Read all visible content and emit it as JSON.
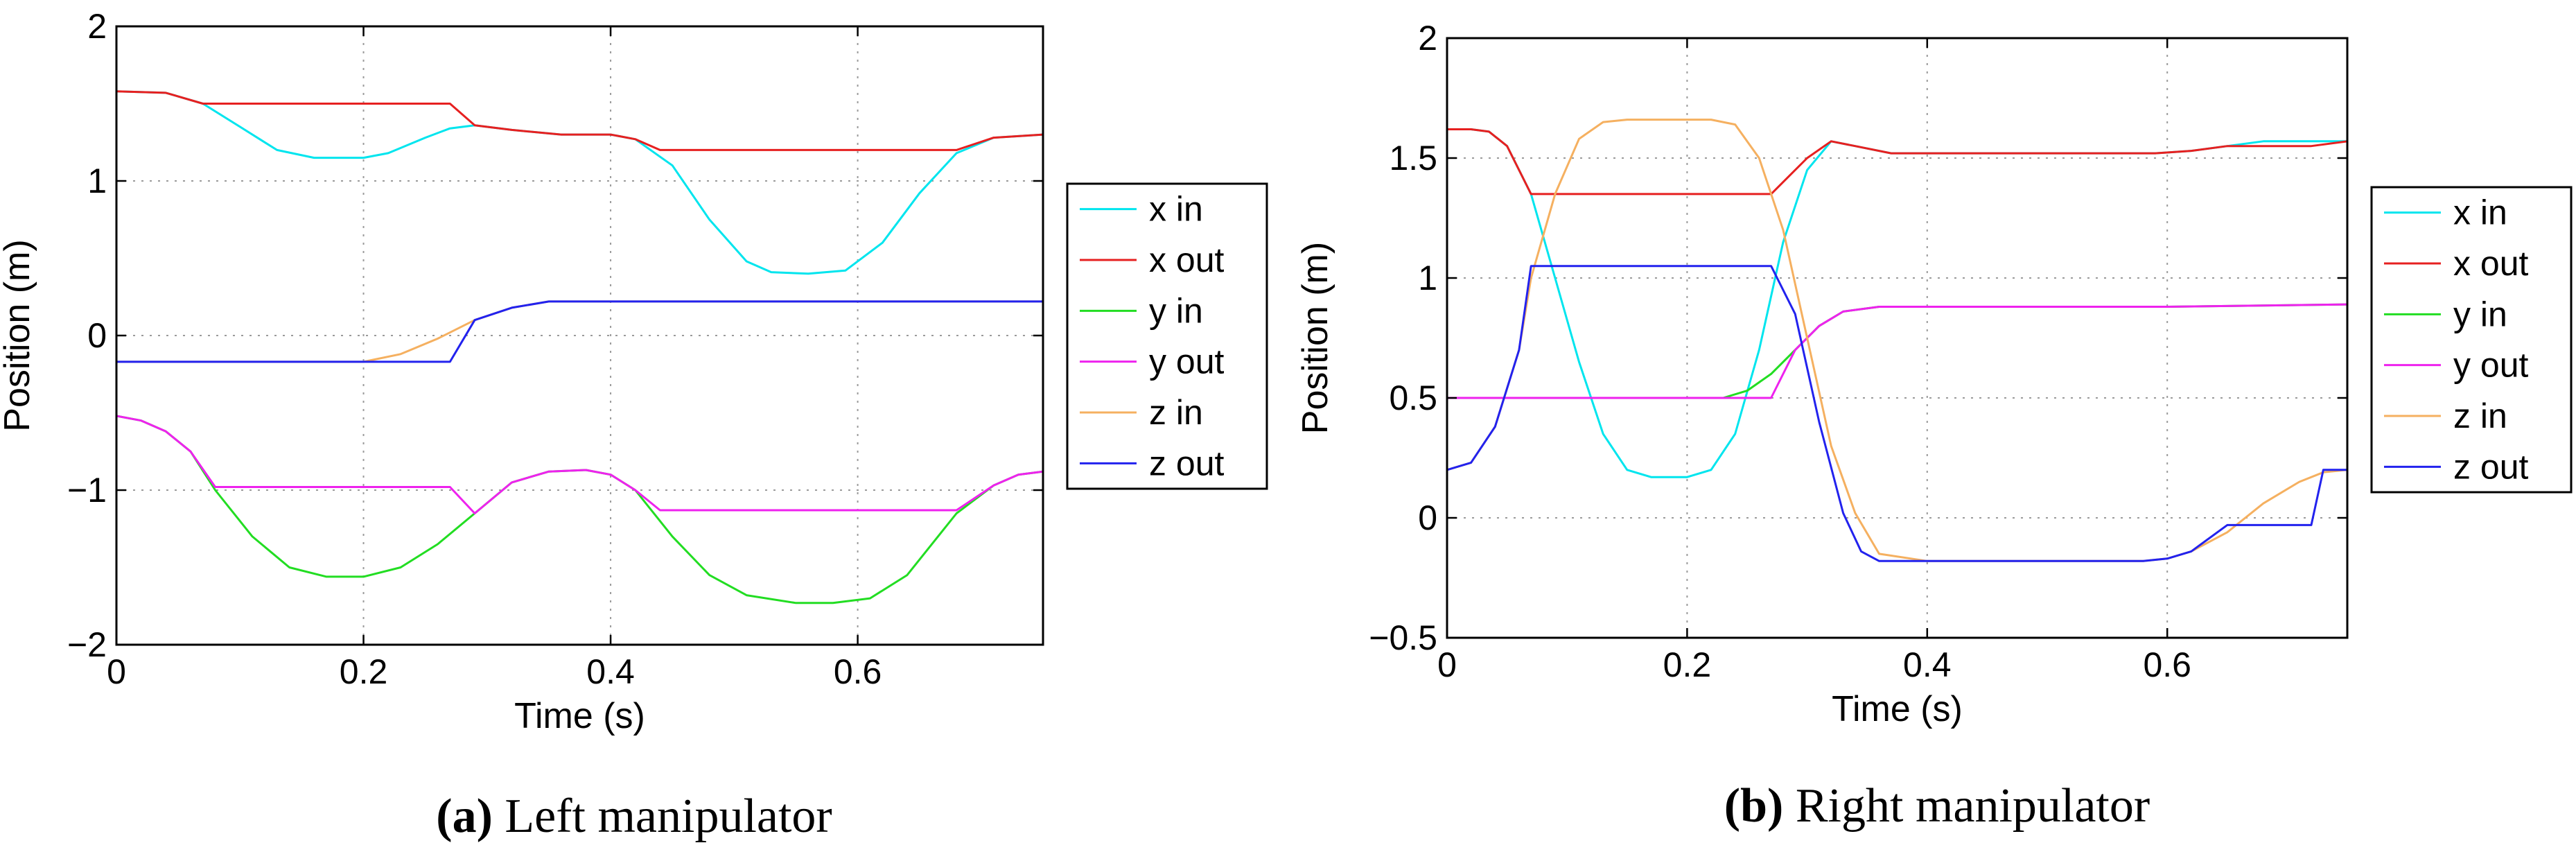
{
  "chart_data": [
    {
      "type": "line",
      "xlabel": "Time (s)",
      "ylabel": "Position (m)",
      "xlim": [
        0,
        0.75
      ],
      "ylim": [
        -2,
        2
      ],
      "xticks": [
        0,
        0.2,
        0.4,
        0.6
      ],
      "xtick_labels": [
        "0",
        "0.2",
        "0.4",
        "0.6"
      ],
      "yticks": [
        -2,
        -1,
        0,
        1,
        2
      ],
      "ytick_labels": [
        "−2",
        "−1",
        "0",
        "1",
        "2"
      ],
      "grid": true,
      "legend_position": "outside-right",
      "caption_label": "(a)",
      "caption_text": " Left manipulator",
      "series": [
        {
          "name": "x in",
          "color": "#00e5ee",
          "x": [
            0,
            0.04,
            0.07,
            0.1,
            0.13,
            0.16,
            0.2,
            0.22,
            0.25,
            0.27,
            0.29,
            0.32,
            0.36,
            0.4,
            0.42,
            0.45,
            0.48,
            0.51,
            0.53,
            0.56,
            0.59,
            0.62,
            0.65,
            0.68,
            0.71,
            0.75
          ],
          "y": [
            1.58,
            1.57,
            1.5,
            1.35,
            1.2,
            1.15,
            1.15,
            1.18,
            1.28,
            1.34,
            1.36,
            1.33,
            1.3,
            1.3,
            1.27,
            1.1,
            0.75,
            0.48,
            0.41,
            0.4,
            0.42,
            0.6,
            0.92,
            1.18,
            1.28,
            1.3
          ]
        },
        {
          "name": "x out",
          "color": "#e62020",
          "x": [
            0,
            0.04,
            0.07,
            0.27,
            0.29,
            0.32,
            0.36,
            0.4,
            0.42,
            0.44,
            0.68,
            0.71,
            0.75
          ],
          "y": [
            1.58,
            1.57,
            1.5,
            1.5,
            1.36,
            1.33,
            1.3,
            1.3,
            1.27,
            1.2,
            1.2,
            1.28,
            1.3
          ]
        },
        {
          "name": "y in",
          "color": "#22dd22",
          "x": [
            0,
            0.02,
            0.04,
            0.06,
            0.08,
            0.11,
            0.14,
            0.17,
            0.2,
            0.23,
            0.26,
            0.29,
            0.32,
            0.35,
            0.38,
            0.4,
            0.42,
            0.45,
            0.48,
            0.51,
            0.55,
            0.58,
            0.61,
            0.64,
            0.68,
            0.71,
            0.73,
            0.75
          ],
          "y": [
            -0.52,
            -0.55,
            -0.62,
            -0.75,
            -1.0,
            -1.3,
            -1.5,
            -1.56,
            -1.56,
            -1.5,
            -1.35,
            -1.15,
            -0.95,
            -0.88,
            -0.87,
            -0.9,
            -1.0,
            -1.3,
            -1.55,
            -1.68,
            -1.73,
            -1.73,
            -1.7,
            -1.55,
            -1.15,
            -0.97,
            -0.9,
            -0.88
          ]
        },
        {
          "name": "y out",
          "color": "#ee22ee",
          "x": [
            0,
            0.02,
            0.04,
            0.06,
            0.08,
            0.27,
            0.29,
            0.32,
            0.35,
            0.38,
            0.4,
            0.42,
            0.44,
            0.68,
            0.71,
            0.73,
            0.75
          ],
          "y": [
            -0.52,
            -0.55,
            -0.62,
            -0.75,
            -0.98,
            -0.98,
            -1.15,
            -0.95,
            -0.88,
            -0.87,
            -0.9,
            -1.0,
            -1.13,
            -1.13,
            -0.97,
            -0.9,
            -0.88
          ]
        },
        {
          "name": "z in",
          "color": "#f5b060",
          "x": [
            0,
            0.2,
            0.23,
            0.26,
            0.29,
            0.32,
            0.35,
            0.4,
            0.75
          ],
          "y": [
            -0.17,
            -0.17,
            -0.12,
            -0.02,
            0.1,
            0.18,
            0.22,
            0.22,
            0.22
          ]
        },
        {
          "name": "z out",
          "color": "#2222ee",
          "x": [
            0,
            0.27,
            0.29,
            0.32,
            0.35,
            0.4,
            0.75
          ],
          "y": [
            -0.17,
            -0.17,
            0.1,
            0.18,
            0.22,
            0.22,
            0.22
          ]
        }
      ]
    },
    {
      "type": "line",
      "xlabel": "Time (s)",
      "ylabel": "Position (m)",
      "xlim": [
        0,
        0.75
      ],
      "ylim": [
        -0.5,
        2
      ],
      "xticks": [
        0,
        0.2,
        0.4,
        0.6
      ],
      "xtick_labels": [
        "0",
        "0.2",
        "0.4",
        "0.6"
      ],
      "yticks": [
        -0.5,
        0,
        0.5,
        1,
        1.5,
        2
      ],
      "ytick_labels": [
        "−0.5",
        "0",
        "0.5",
        "1",
        "1.5",
        "2"
      ],
      "grid": true,
      "legend_position": "outside-right",
      "caption_label": "(b)",
      "caption_text": " Right manipulator",
      "series": [
        {
          "name": "x in",
          "color": "#00e5ee",
          "x": [
            0,
            0.02,
            0.035,
            0.05,
            0.07,
            0.09,
            0.11,
            0.13,
            0.15,
            0.17,
            0.2,
            0.22,
            0.24,
            0.26,
            0.28,
            0.3,
            0.32,
            0.34,
            0.37,
            0.4,
            0.59,
            0.62,
            0.65,
            0.68,
            0.72,
            0.75
          ],
          "y": [
            1.62,
            1.62,
            1.61,
            1.55,
            1.35,
            1.0,
            0.65,
            0.35,
            0.2,
            0.17,
            0.17,
            0.2,
            0.35,
            0.7,
            1.15,
            1.45,
            1.57,
            1.55,
            1.52,
            1.52,
            1.52,
            1.53,
            1.55,
            1.57,
            1.57,
            1.57
          ]
        },
        {
          "name": "x out",
          "color": "#e62020",
          "x": [
            0,
            0.02,
            0.035,
            0.05,
            0.07,
            0.27,
            0.3,
            0.32,
            0.34,
            0.37,
            0.4,
            0.59,
            0.62,
            0.65,
            0.68,
            0.72,
            0.75
          ],
          "y": [
            1.62,
            1.62,
            1.61,
            1.55,
            1.35,
            1.35,
            1.5,
            1.57,
            1.55,
            1.52,
            1.52,
            1.52,
            1.53,
            1.55,
            1.55,
            1.55,
            1.57
          ]
        },
        {
          "name": "y in",
          "color": "#22dd22",
          "x": [
            0,
            0.23,
            0.25,
            0.27,
            0.29,
            0.31,
            0.33,
            0.36,
            0.4,
            0.6,
            0.75
          ],
          "y": [
            0.5,
            0.5,
            0.53,
            0.6,
            0.7,
            0.8,
            0.86,
            0.88,
            0.88,
            0.88,
            0.89
          ]
        },
        {
          "name": "y out",
          "color": "#ee22ee",
          "x": [
            0,
            0.27,
            0.29,
            0.31,
            0.33,
            0.36,
            0.4,
            0.6,
            0.75
          ],
          "y": [
            0.5,
            0.5,
            0.7,
            0.8,
            0.86,
            0.88,
            0.88,
            0.88,
            0.89
          ]
        },
        {
          "name": "z in",
          "color": "#f5b060",
          "x": [
            0,
            0.02,
            0.04,
            0.06,
            0.07,
            0.09,
            0.11,
            0.13,
            0.15,
            0.18,
            0.22,
            0.24,
            0.26,
            0.28,
            0.3,
            0.32,
            0.34,
            0.36,
            0.4,
            0.58,
            0.6,
            0.62,
            0.65,
            0.68,
            0.71,
            0.73,
            0.75
          ],
          "y": [
            0.2,
            0.23,
            0.38,
            0.7,
            1.0,
            1.35,
            1.58,
            1.65,
            1.66,
            1.66,
            1.66,
            1.64,
            1.5,
            1.2,
            0.75,
            0.3,
            0.02,
            -0.15,
            -0.18,
            -0.18,
            -0.17,
            -0.14,
            -0.06,
            0.06,
            0.15,
            0.19,
            0.2
          ]
        },
        {
          "name": "z out",
          "color": "#2222ee",
          "x": [
            0,
            0.02,
            0.04,
            0.06,
            0.07,
            0.27,
            0.29,
            0.31,
            0.33,
            0.345,
            0.36,
            0.4,
            0.58,
            0.6,
            0.62,
            0.65,
            0.72,
            0.73,
            0.75
          ],
          "y": [
            0.2,
            0.23,
            0.38,
            0.7,
            1.05,
            1.05,
            0.85,
            0.4,
            0.02,
            -0.14,
            -0.18,
            -0.18,
            -0.18,
            -0.17,
            -0.14,
            -0.03,
            -0.03,
            0.2,
            0.2
          ]
        }
      ]
    }
  ]
}
